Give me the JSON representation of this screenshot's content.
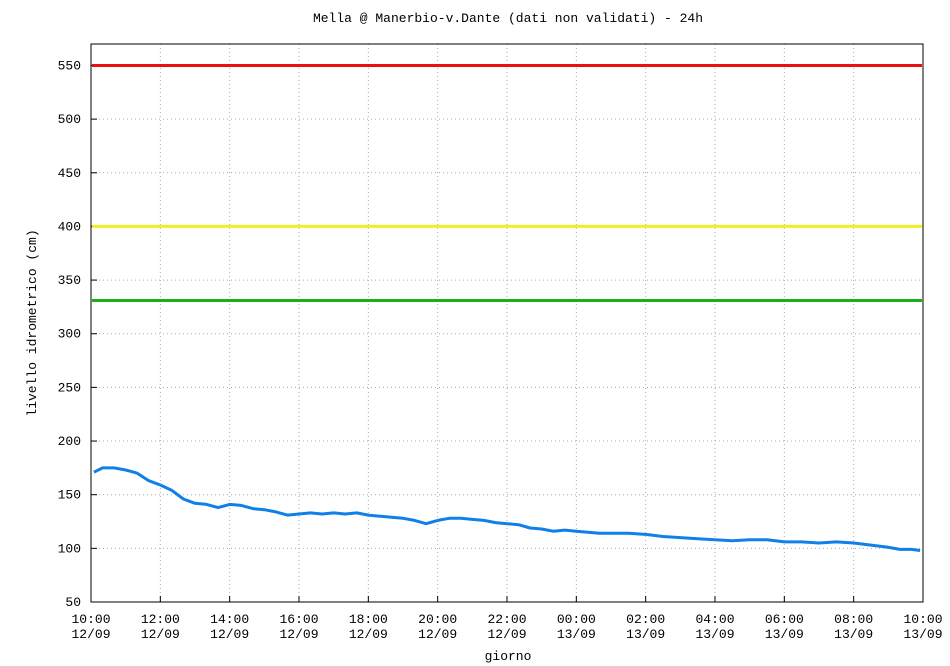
{
  "chart_data": {
    "type": "line",
    "title": "Mella @ Manerbio-v.Dante (dati non validati) - 24h",
    "xlabel": "giorno",
    "ylabel": "livello idrometrico (cm)",
    "ylim": [
      50,
      570
    ],
    "yticks": [
      50,
      100,
      150,
      200,
      250,
      300,
      350,
      400,
      450,
      500,
      550
    ],
    "xlim": [
      "12/09 10:00",
      "13/09 10:00"
    ],
    "xticks": [
      {
        "time": "10:00",
        "date": "12/09"
      },
      {
        "time": "12:00",
        "date": "12/09"
      },
      {
        "time": "14:00",
        "date": "12/09"
      },
      {
        "time": "16:00",
        "date": "12/09"
      },
      {
        "time": "18:00",
        "date": "12/09"
      },
      {
        "time": "20:00",
        "date": "12/09"
      },
      {
        "time": "22:00",
        "date": "12/09"
      },
      {
        "time": "00:00",
        "date": "13/09"
      },
      {
        "time": "02:00",
        "date": "13/09"
      },
      {
        "time": "04:00",
        "date": "13/09"
      },
      {
        "time": "06:00",
        "date": "13/09"
      },
      {
        "time": "08:00",
        "date": "13/09"
      },
      {
        "time": "10:00",
        "date": "13/09"
      }
    ],
    "grid": true,
    "thresholds": [
      {
        "value": 550,
        "color": "#e81010"
      },
      {
        "value": 400,
        "color": "#f0f020"
      },
      {
        "value": 331,
        "color": "#18b018"
      }
    ],
    "series": [
      {
        "color": "#1080e8",
        "x": [
          "12/09 10:05",
          "12/09 10:20",
          "12/09 10:40",
          "12/09 11:00",
          "12/09 11:20",
          "12/09 11:40",
          "12/09 12:00",
          "12/09 12:20",
          "12/09 12:40",
          "12/09 13:00",
          "12/09 13:20",
          "12/09 13:40",
          "12/09 14:00",
          "12/09 14:20",
          "12/09 14:40",
          "12/09 15:00",
          "12/09 15:20",
          "12/09 15:40",
          "12/09 16:00",
          "12/09 16:20",
          "12/09 16:40",
          "12/09 17:00",
          "12/09 17:20",
          "12/09 17:40",
          "12/09 18:00",
          "12/09 18:20",
          "12/09 18:40",
          "12/09 19:00",
          "12/09 19:20",
          "12/09 19:40",
          "12/09 20:00",
          "12/09 20:20",
          "12/09 20:40",
          "12/09 21:00",
          "12/09 21:20",
          "12/09 21:40",
          "12/09 22:00",
          "12/09 22:20",
          "12/09 22:40",
          "12/09 23:00",
          "12/09 23:20",
          "12/09 23:40",
          "13/09 00:00",
          "13/09 00:20",
          "13/09 00:40",
          "13/09 01:00",
          "13/09 01:30",
          "13/09 02:00",
          "13/09 02:30",
          "13/09 03:00",
          "13/09 03:30",
          "13/09 04:00",
          "13/09 04:30",
          "13/09 05:00",
          "13/09 05:30",
          "13/09 06:00",
          "13/09 06:30",
          "13/09 07:00",
          "13/09 07:30",
          "13/09 08:00",
          "13/09 08:30",
          "13/09 09:00",
          "13/09 09:20",
          "13/09 09:40",
          "13/09 09:55"
        ],
        "values": [
          171,
          175,
          175,
          173,
          170,
          163,
          159,
          154,
          146,
          142,
          141,
          138,
          141,
          140,
          137,
          136,
          134,
          131,
          132,
          133,
          132,
          133,
          132,
          133,
          131,
          130,
          129,
          128,
          126,
          123,
          126,
          128,
          128,
          127,
          126,
          124,
          123,
          122,
          119,
          118,
          116,
          117,
          116,
          115,
          114,
          114,
          114,
          113,
          111,
          110,
          109,
          108,
          107,
          108,
          108,
          106,
          106,
          105,
          106,
          105,
          103,
          101,
          99,
          99,
          98
        ]
      }
    ]
  }
}
